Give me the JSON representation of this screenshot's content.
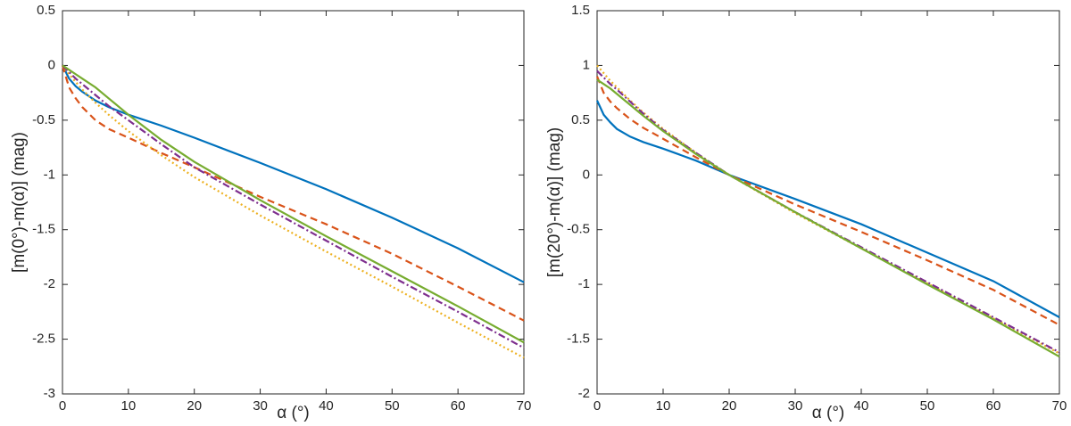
{
  "chart_data": [
    {
      "type": "line",
      "xlabel": "α (°)",
      "ylabel": "[m(0°)-m(α)] (mag)",
      "x": [
        0,
        1,
        2,
        3,
        5,
        7,
        10,
        15,
        20,
        30,
        40,
        50,
        60,
        70
      ],
      "xlim": [
        0,
        70
      ],
      "xticks": [
        0,
        10,
        20,
        30,
        40,
        50,
        60,
        70
      ],
      "ylim": [
        -3,
        0.5
      ],
      "yticks": [
        -3,
        -2.5,
        -2,
        -1.5,
        -1,
        -0.5,
        0,
        0.5
      ],
      "series": [
        {
          "color": "#0072bd",
          "style": "solid",
          "values": [
            0,
            -0.12,
            -0.19,
            -0.24,
            -0.32,
            -0.38,
            -0.45,
            -0.55,
            -0.66,
            -0.89,
            -1.13,
            -1.39,
            -1.67,
            -1.98
          ]
        },
        {
          "color": "#d95319",
          "style": "dashed",
          "values": [
            0,
            -0.2,
            -0.3,
            -0.38,
            -0.5,
            -0.58,
            -0.66,
            -0.8,
            -0.93,
            -1.2,
            -1.45,
            -1.72,
            -2.02,
            -2.33
          ]
        },
        {
          "color": "#edb120",
          "style": "dotted",
          "values": [
            0,
            -0.08,
            -0.15,
            -0.22,
            -0.34,
            -0.45,
            -0.6,
            -0.82,
            -1.02,
            -1.37,
            -1.7,
            -2.02,
            -2.35,
            -2.67
          ]
        },
        {
          "color": "#7e2f8e",
          "style": "dash-dot",
          "values": [
            0,
            -0.06,
            -0.12,
            -0.17,
            -0.27,
            -0.37,
            -0.5,
            -0.72,
            -0.93,
            -1.27,
            -1.6,
            -1.93,
            -2.25,
            -2.58
          ]
        },
        {
          "color": "#77ac30",
          "style": "solid",
          "values": [
            0,
            -0.04,
            -0.08,
            -0.12,
            -0.2,
            -0.3,
            -0.45,
            -0.68,
            -0.88,
            -1.23,
            -1.56,
            -1.88,
            -2.2,
            -2.53
          ]
        }
      ]
    },
    {
      "type": "line",
      "xlabel": "α (°)",
      "ylabel": "[m(20°)-m(α)] (mag)",
      "x": [
        0,
        1,
        2,
        3,
        5,
        7,
        10,
        15,
        20,
        30,
        40,
        50,
        60,
        70
      ],
      "xlim": [
        0,
        70
      ],
      "xticks": [
        0,
        10,
        20,
        30,
        40,
        50,
        60,
        70
      ],
      "ylim": [
        -2,
        1.5
      ],
      "yticks": [
        -2,
        -1.5,
        -1,
        -0.5,
        0,
        0.5,
        1,
        1.5
      ],
      "series": [
        {
          "color": "#0072bd",
          "style": "solid",
          "values": [
            0.68,
            0.55,
            0.48,
            0.42,
            0.35,
            0.3,
            0.24,
            0.13,
            0,
            -0.22,
            -0.45,
            -0.71,
            -0.97,
            -1.3
          ]
        },
        {
          "color": "#d95319",
          "style": "dashed",
          "values": [
            0.9,
            0.75,
            0.67,
            0.61,
            0.51,
            0.43,
            0.33,
            0.16,
            0,
            -0.27,
            -0.52,
            -0.78,
            -1.05,
            -1.37
          ]
        },
        {
          "color": "#edb120",
          "style": "dotted",
          "values": [
            1.0,
            0.93,
            0.86,
            0.8,
            0.68,
            0.57,
            0.42,
            0.2,
            0,
            -0.35,
            -0.67,
            -0.99,
            -1.31,
            -1.63
          ]
        },
        {
          "color": "#7e2f8e",
          "style": "dash-dot",
          "values": [
            0.95,
            0.89,
            0.83,
            0.78,
            0.67,
            0.56,
            0.41,
            0.2,
            0,
            -0.34,
            -0.66,
            -0.98,
            -1.3,
            -1.62
          ]
        },
        {
          "color": "#77ac30",
          "style": "solid",
          "values": [
            0.87,
            0.83,
            0.79,
            0.74,
            0.64,
            0.54,
            0.4,
            0.19,
            0,
            -0.34,
            -0.67,
            -1.0,
            -1.32,
            -1.66
          ]
        }
      ]
    }
  ]
}
